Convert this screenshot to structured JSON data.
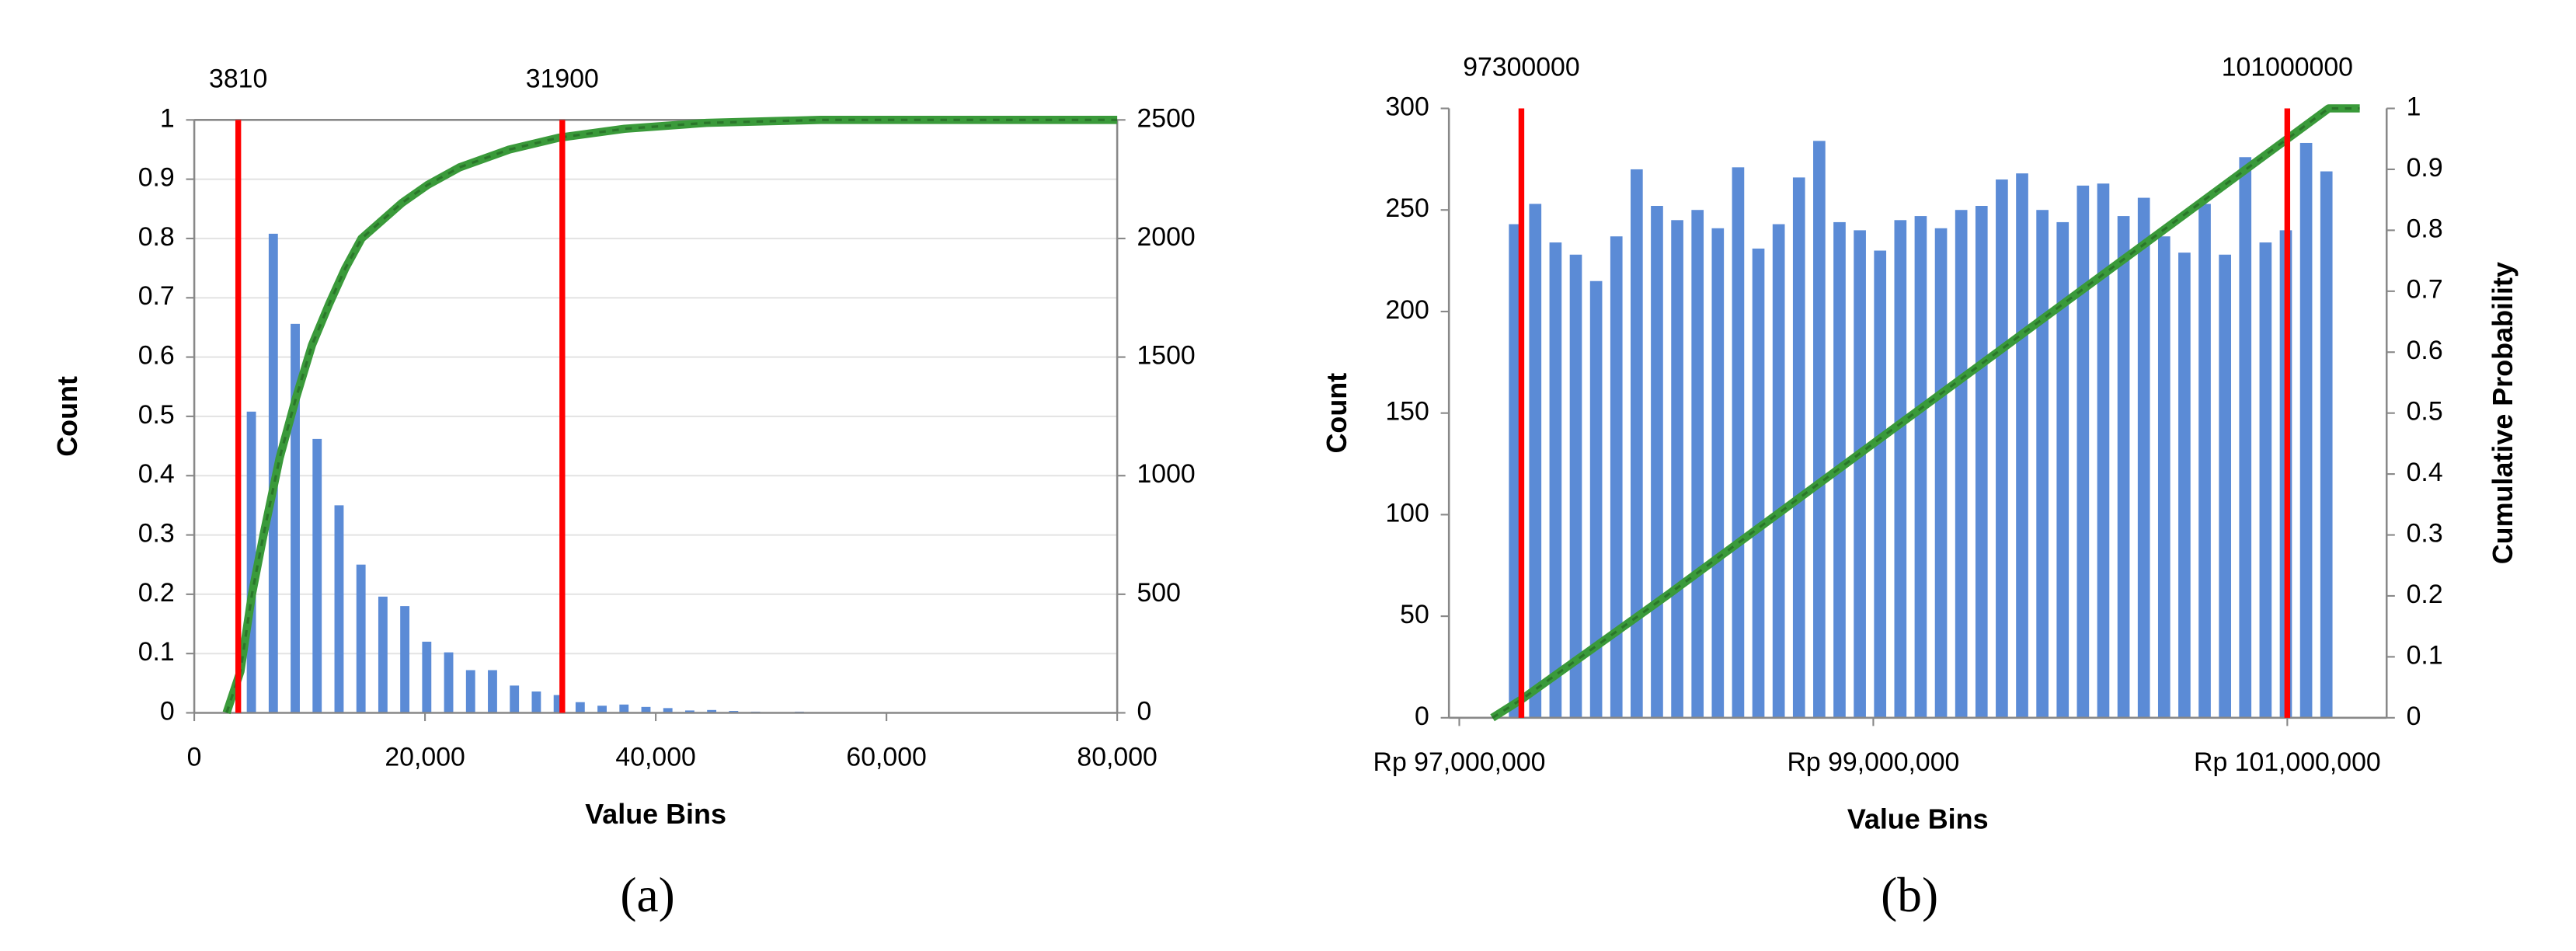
{
  "chart_data": [
    {
      "type": "histogram",
      "caption": "(a)",
      "xlabel": "Value Bins",
      "ylabel": "Count",
      "bins": [
        4000,
        5900,
        7800,
        9700,
        11600,
        13500,
        15400,
        17300,
        19200,
        21100,
        23000,
        24900,
        26800,
        28700,
        30600,
        32500,
        34400,
        36300,
        38200,
        40100,
        42000,
        43900,
        45800,
        47700,
        49600,
        51500,
        53400,
        55300,
        57200,
        59100,
        61000
      ],
      "values": [
        1270,
        2020,
        1640,
        1155,
        875,
        625,
        490,
        450,
        300,
        255,
        180,
        180,
        115,
        90,
        75,
        45,
        30,
        35,
        25,
        20,
        10,
        12,
        8,
        5,
        3,
        5,
        2,
        3,
        1,
        2
      ],
      "color": "#5b8bd6",
      "axis": "y2",
      "cumulative": {
        "x": [
          2800,
          4000,
          5000,
          6000,
          7400,
          8800,
          10200,
          11700,
          13100,
          14500,
          18000,
          20200,
          23000,
          27300,
          31600,
          37300,
          44400,
          54300,
          80000
        ],
        "values": [
          0,
          0.07,
          0.2,
          0.3,
          0.43,
          0.53,
          0.62,
          0.69,
          0.75,
          0.8,
          0.86,
          0.89,
          0.92,
          0.95,
          0.97,
          0.985,
          0.995,
          1,
          1
        ],
        "color": "#3a9a3a",
        "axis": "y"
      },
      "markers": {
        "values": [
          3810,
          31900
        ],
        "color": "#ff0000"
      },
      "xlim": [
        0,
        80000
      ],
      "xticks": [
        0,
        {
          "value": 20000,
          "label": "20,000"
        },
        {
          "value": 40000,
          "label": "40,000"
        },
        {
          "value": 60000,
          "label": "60,000"
        },
        {
          "value": 80000,
          "label": "80,000"
        }
      ],
      "ylim": [
        0,
        1
      ],
      "yticks": [
        0,
        0.1,
        0.2,
        0.3,
        0.4,
        0.5,
        0.6,
        0.7,
        0.8,
        0.9,
        1
      ],
      "y2lim": [
        0,
        2500
      ],
      "y2ticks": [
        0,
        500,
        1000,
        1500,
        2000,
        2500
      ],
      "grid": true
    },
    {
      "type": "histogram",
      "caption": "(b)",
      "xlabel": "Value Bins",
      "ylabel": "Count",
      "y2label": "Cumulative Probability",
      "y2color": "#2e7d2e",
      "bins": [
        97220000,
        97318000,
        97416000,
        97514000,
        97612000,
        97710000,
        97808000,
        97906000,
        98004000,
        98102000,
        98200000,
        98298000,
        98396000,
        98494000,
        98592000,
        98690000,
        98788000,
        98886000,
        98984000,
        99082000,
        99180000,
        99278000,
        99376000,
        99474000,
        99572000,
        99670000,
        99768000,
        99866000,
        99964000,
        100062000,
        100160000,
        100258000,
        100356000,
        100454000,
        100552000,
        100650000,
        100748000,
        100846000,
        100944000,
        101042000,
        101140000,
        101238000
      ],
      "values": [
        243,
        253,
        234,
        228,
        215,
        237,
        270,
        252,
        245,
        250,
        241,
        271,
        231,
        243,
        266,
        284,
        244,
        240,
        230,
        245,
        247,
        241,
        250,
        252,
        265,
        268,
        250,
        244,
        262,
        263,
        247,
        256,
        237,
        229,
        253,
        228,
        276,
        234,
        240,
        283,
        269
      ],
      "color": "#5b8bd6",
      "axis": "y",
      "cumulative": {
        "x": [
          97160000,
          97300000,
          98000000,
          99000000,
          100000000,
          101000000,
          101200000,
          101350000
        ],
        "values": [
          0,
          0.03,
          0.2,
          0.45,
          0.7,
          0.95,
          1,
          1
        ],
        "color": "#3a9a3a",
        "axis": "y2"
      },
      "markers": {
        "values": [
          97300000,
          101000000
        ],
        "color": "#ff0000"
      },
      "xlim": [
        96950000,
        101480000
      ],
      "xticks": [
        {
          "value": 97000000,
          "label": "Rp 97,000,000"
        },
        {
          "value": 99000000,
          "label": "Rp 99,000,000"
        },
        {
          "value": 101000000,
          "label": "Rp 101,000,000"
        }
      ],
      "ylim": [
        0,
        300
      ],
      "yticks": [
        0,
        50,
        100,
        150,
        200,
        250,
        300
      ],
      "y2lim": [
        0,
        1
      ],
      "y2ticks": [
        0,
        0.1,
        0.2,
        0.3,
        0.4,
        0.5,
        0.6,
        0.7,
        0.8,
        0.9,
        1
      ],
      "grid": false
    }
  ]
}
